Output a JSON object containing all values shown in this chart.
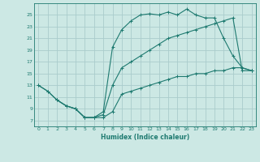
{
  "title": "",
  "xlabel": "Humidex (Indice chaleur)",
  "bg_color": "#cce8e4",
  "grid_color": "#aacccc",
  "line_color": "#1e7a70",
  "xlim": [
    -0.5,
    23.5
  ],
  "ylim": [
    6.0,
    27.0
  ],
  "yticks": [
    7,
    9,
    11,
    13,
    15,
    17,
    19,
    21,
    23,
    25
  ],
  "xticks": [
    0,
    1,
    2,
    3,
    4,
    5,
    6,
    7,
    8,
    9,
    10,
    11,
    12,
    13,
    14,
    15,
    16,
    17,
    18,
    19,
    20,
    21,
    22,
    23
  ],
  "line1_x": [
    0,
    1,
    2,
    3,
    4,
    5,
    6,
    7,
    8,
    9,
    10,
    11,
    12,
    13,
    14,
    15,
    16,
    17,
    18,
    19,
    20,
    21,
    22,
    23
  ],
  "line1_y": [
    13,
    12,
    10.5,
    9.5,
    9,
    7.5,
    7.5,
    8.5,
    19.5,
    22.5,
    24,
    25,
    25.2,
    25,
    25.5,
    25,
    26,
    25,
    24.5,
    24.5,
    21,
    18,
    16,
    15.5
  ],
  "line2_x": [
    0,
    1,
    2,
    3,
    4,
    5,
    6,
    7,
    8,
    9,
    10,
    11,
    12,
    13,
    14,
    15,
    16,
    17,
    18,
    19,
    20,
    21,
    22,
    23
  ],
  "line2_y": [
    13,
    12,
    10.5,
    9.5,
    9,
    7.5,
    7.5,
    8,
    13,
    16,
    17,
    18,
    19,
    20,
    21,
    21.5,
    22,
    22.5,
    23,
    23.5,
    24,
    24.5,
    15.5,
    15.5
  ],
  "line3_x": [
    2,
    3,
    4,
    5,
    6,
    7,
    8,
    9,
    10,
    11,
    12,
    13,
    14,
    15,
    16,
    17,
    18,
    19,
    20,
    21,
    22,
    23
  ],
  "line3_y": [
    10.5,
    9.5,
    9,
    7.5,
    7.5,
    7.5,
    8.5,
    11.5,
    12,
    12.5,
    13,
    13.5,
    14,
    14.5,
    14.5,
    15,
    15,
    15.5,
    15.5,
    16,
    16,
    15.5
  ]
}
